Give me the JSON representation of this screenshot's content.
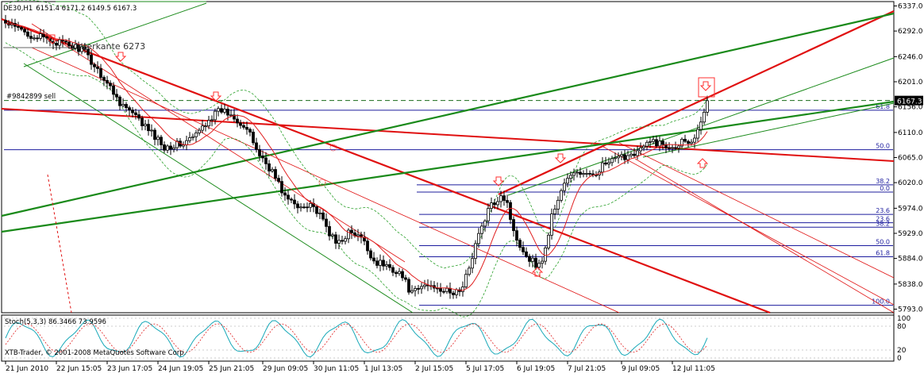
{
  "chart_data": {
    "type": "candlestick",
    "header": {
      "symbol": "DE30,H1",
      "ohlc": "6151.4 6171.2 6149.5 6167.3"
    },
    "annotations": {
      "level_text": "Unterkante 6273",
      "order_text": "#9842899 sell",
      "copyright": "XTB-Trader, © 2001-2008 MetaQuotes Software Corp."
    },
    "price_axis": {
      "ticks": [
        "6337.0",
        "6292.0",
        "6246.0",
        "6201.0",
        "6156.0",
        "6110.0",
        "6065.0",
        "6020.0",
        "5974.0",
        "5929.0",
        "5884.0",
        "5838.0",
        "5793.0"
      ],
      "tick_values": [
        6337,
        6292,
        6246,
        6201,
        6156,
        6110,
        6065,
        6020,
        5974,
        5929,
        5884,
        5838,
        5793
      ],
      "current_price": "6167.3",
      "current_value": 6167.3,
      "ylim": [
        5788,
        6342
      ]
    },
    "fib_upper": {
      "labels": [
        "61.8",
        "50.0",
        "38.2",
        "0.0"
      ],
      "values": [
        6150,
        6079,
        6016,
        6003
      ]
    },
    "fib_lower": {
      "labels": [
        "23.6",
        "23.6",
        "38.2",
        "50.0",
        "61.8",
        "100.0"
      ],
      "values": [
        5963,
        5948,
        5940,
        5907,
        5887,
        5800
      ]
    },
    "time_axis": {
      "labels": [
        "21 Jun 2010",
        "22 Jun 15:05",
        "23 Jun 17:05",
        "24 Jun 19:05",
        "25 Jun 21:05",
        "29 Jun 09:05",
        "30 Jun 11:05",
        "1 Jul 13:05",
        "2 Jul 15:05",
        "5 Jul 17:05",
        "6 Jul 19:05",
        "7 Jul 21:05",
        "9 Jul 09:05",
        "12 Jul 11:05"
      ],
      "bar_index": [
        0,
        16,
        32,
        48,
        64,
        81,
        97,
        113,
        129,
        145,
        161,
        177,
        194,
        210
      ]
    },
    "candles": {
      "count": 222,
      "anchors": [
        [
          0,
          6305
        ],
        [
          8,
          6285
        ],
        [
          16,
          6272
        ],
        [
          24,
          6260
        ],
        [
          30,
          6215
        ],
        [
          36,
          6165
        ],
        [
          44,
          6120
        ],
        [
          50,
          6085
        ],
        [
          56,
          6090
        ],
        [
          60,
          6105
        ],
        [
          64,
          6135
        ],
        [
          68,
          6150
        ],
        [
          72,
          6140
        ],
        [
          76,
          6115
        ],
        [
          80,
          6070
        ],
        [
          84,
          6040
        ],
        [
          88,
          5995
        ],
        [
          92,
          5975
        ],
        [
          96,
          5985
        ],
        [
          100,
          5950
        ],
        [
          104,
          5910
        ],
        [
          108,
          5930
        ],
        [
          112,
          5920
        ],
        [
          116,
          5880
        ],
        [
          120,
          5870
        ],
        [
          124,
          5860
        ],
        [
          128,
          5820
        ],
        [
          132,
          5836
        ],
        [
          136,
          5834
        ],
        [
          140,
          5820
        ],
        [
          144,
          5830
        ],
        [
          148,
          5910
        ],
        [
          152,
          5970
        ],
        [
          156,
          6000
        ],
        [
          158,
          5985
        ],
        [
          160,
          5930
        ],
        [
          164,
          5890
        ],
        [
          168,
          5870
        ],
        [
          170,
          5900
        ],
        [
          172,
          5960
        ],
        [
          176,
          6020
        ],
        [
          180,
          6040
        ],
        [
          184,
          6030
        ],
        [
          188,
          6050
        ],
        [
          192,
          6060
        ],
        [
          196,
          6070
        ],
        [
          200,
          6080
        ],
        [
          204,
          6095
        ],
        [
          208,
          6085
        ],
        [
          212,
          6090
        ],
        [
          214,
          6100
        ],
        [
          216,
          6090
        ],
        [
          218,
          6120
        ],
        [
          221,
          6167
        ]
      ]
    },
    "stochastic": {
      "label": "Stoch(5,3,3) 86.3466 73.9596",
      "levels": [
        "100",
        "80",
        "20",
        "0"
      ],
      "level_values": [
        100,
        80,
        20,
        0
      ]
    },
    "colors": {
      "trend_red": "#e01010",
      "trend_green": "#1a8a1a",
      "fib_blue": "#1c1c9e",
      "candle": "#000000",
      "ma_red": "#e02020",
      "bands_green": "#2aa02a",
      "arrow_red": "#ff3030"
    }
  }
}
